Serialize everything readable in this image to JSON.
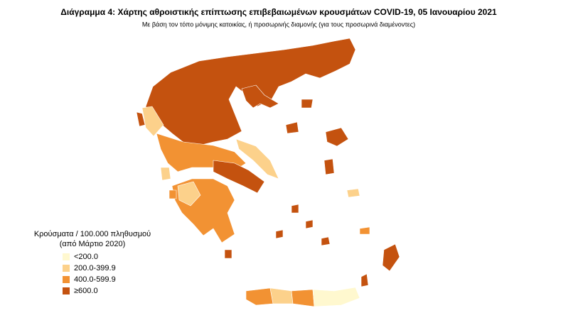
{
  "header": {
    "title": "Διάγραμμα 4: Χάρτης αθροιστικής επίπτωσης επιβεβαιωμένων κρουσμάτων COVID-19, 05 Ιανουαρίου 2021",
    "subtitle": "Με βάση τον τόπο μόνιμης κατοικίας, ή προσωρινής διαμονής (για τους προσωρινά διαμένοντες)"
  },
  "legend": {
    "title": "Κρούσματα / 100.000 πληθυσμού",
    "subtitle": "(από Μάρτιο 2020)",
    "items": [
      {
        "label": "<200.0",
        "color": "#fff8cf"
      },
      {
        "label": "200.0-399.9",
        "color": "#fcd18b"
      },
      {
        "label": "400.0-599.9",
        "color": "#f29233"
      },
      {
        "label": "≥600.0",
        "color": "#c4520f"
      }
    ]
  }
}
